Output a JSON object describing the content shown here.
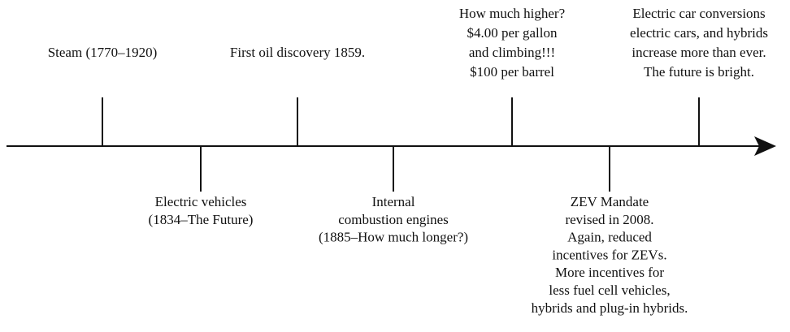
{
  "events": [
    {
      "lines": [
        "Steam (1770–1920)"
      ]
    },
    {
      "lines": [
        "Electric vehicles",
        "(1834–The Future)"
      ]
    },
    {
      "lines": [
        "First oil discovery 1859."
      ]
    },
    {
      "lines": [
        "Internal",
        "combustion engines",
        "(1885–How much longer?)"
      ]
    },
    {
      "lines": [
        "How much higher?",
        "$4.00 per gallon",
        "and climbing!!!",
        "$100 per barrel"
      ]
    },
    {
      "lines": [
        "ZEV Mandate",
        "revised in 2008.",
        "Again, reduced",
        "incentives for ZEVs.",
        "More incentives for",
        "less fuel cell vehicles,",
        "hybrids and plug-in hybrids."
      ]
    },
    {
      "lines": [
        "Electric car conversions",
        "electric cars, and hybrids",
        "increase more than ever.",
        "The future is bright."
      ]
    }
  ]
}
